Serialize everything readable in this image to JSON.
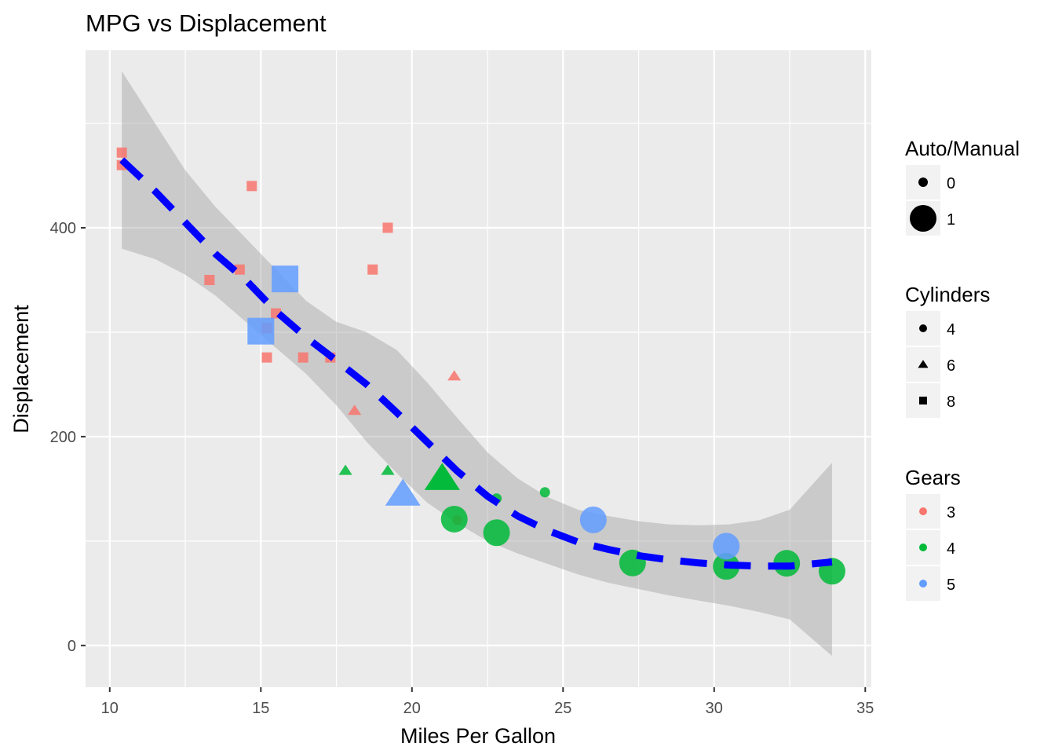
{
  "chart_data": {
    "type": "scatter",
    "title": "MPG vs Displacement",
    "xlabel": "Miles Per Gallon",
    "ylabel": "Displacement",
    "xlim": [
      9.2,
      35.2
    ],
    "ylim": [
      -40,
      570
    ],
    "x_ticks": [
      10,
      15,
      20,
      25,
      30,
      35
    ],
    "y_ticks": [
      0,
      200,
      400
    ],
    "grid": true,
    "legend_position": "right",
    "colors": {
      "3": "#F8766D",
      "4": "#00BA38",
      "5": "#619CFF"
    },
    "legends": [
      {
        "title": "Auto/Manual",
        "entries": [
          "0",
          "1"
        ]
      },
      {
        "title": "Cylinders",
        "entries": [
          "4",
          "6",
          "8"
        ]
      },
      {
        "title": "Gears",
        "entries": [
          "3",
          "4",
          "5"
        ]
      }
    ],
    "points": [
      {
        "mpg": 21.0,
        "disp": 160,
        "cyl": 6,
        "gear": 4,
        "am": 1
      },
      {
        "mpg": 21.0,
        "disp": 160,
        "cyl": 6,
        "gear": 4,
        "am": 1
      },
      {
        "mpg": 22.8,
        "disp": 108,
        "cyl": 4,
        "gear": 4,
        "am": 1
      },
      {
        "mpg": 21.4,
        "disp": 258,
        "cyl": 6,
        "gear": 3,
        "am": 0
      },
      {
        "mpg": 18.7,
        "disp": 360,
        "cyl": 8,
        "gear": 3,
        "am": 0
      },
      {
        "mpg": 18.1,
        "disp": 225,
        "cyl": 6,
        "gear": 3,
        "am": 0
      },
      {
        "mpg": 14.3,
        "disp": 360,
        "cyl": 8,
        "gear": 3,
        "am": 0
      },
      {
        "mpg": 24.4,
        "disp": 146.7,
        "cyl": 4,
        "gear": 4,
        "am": 0
      },
      {
        "mpg": 22.8,
        "disp": 140.8,
        "cyl": 4,
        "gear": 4,
        "am": 0
      },
      {
        "mpg": 19.2,
        "disp": 167.6,
        "cyl": 6,
        "gear": 4,
        "am": 0
      },
      {
        "mpg": 17.8,
        "disp": 167.6,
        "cyl": 6,
        "gear": 4,
        "am": 0
      },
      {
        "mpg": 16.4,
        "disp": 275.8,
        "cyl": 8,
        "gear": 3,
        "am": 0
      },
      {
        "mpg": 17.3,
        "disp": 275.8,
        "cyl": 8,
        "gear": 3,
        "am": 0
      },
      {
        "mpg": 15.2,
        "disp": 275.8,
        "cyl": 8,
        "gear": 3,
        "am": 0
      },
      {
        "mpg": 10.4,
        "disp": 472,
        "cyl": 8,
        "gear": 3,
        "am": 0
      },
      {
        "mpg": 10.4,
        "disp": 460,
        "cyl": 8,
        "gear": 3,
        "am": 0
      },
      {
        "mpg": 14.7,
        "disp": 440,
        "cyl": 8,
        "gear": 3,
        "am": 0
      },
      {
        "mpg": 32.4,
        "disp": 78.7,
        "cyl": 4,
        "gear": 4,
        "am": 1
      },
      {
        "mpg": 30.4,
        "disp": 75.7,
        "cyl": 4,
        "gear": 4,
        "am": 1
      },
      {
        "mpg": 33.9,
        "disp": 71.1,
        "cyl": 4,
        "gear": 4,
        "am": 1
      },
      {
        "mpg": 21.5,
        "disp": 120.1,
        "cyl": 4,
        "gear": 3,
        "am": 0
      },
      {
        "mpg": 15.5,
        "disp": 318,
        "cyl": 8,
        "gear": 3,
        "am": 0
      },
      {
        "mpg": 15.2,
        "disp": 304,
        "cyl": 8,
        "gear": 3,
        "am": 0
      },
      {
        "mpg": 13.3,
        "disp": 350,
        "cyl": 8,
        "gear": 3,
        "am": 0
      },
      {
        "mpg": 19.2,
        "disp": 400,
        "cyl": 8,
        "gear": 3,
        "am": 0
      },
      {
        "mpg": 27.3,
        "disp": 79,
        "cyl": 4,
        "gear": 4,
        "am": 1
      },
      {
        "mpg": 26.0,
        "disp": 120.3,
        "cyl": 4,
        "gear": 5,
        "am": 1
      },
      {
        "mpg": 30.4,
        "disp": 95.1,
        "cyl": 4,
        "gear": 5,
        "am": 1
      },
      {
        "mpg": 15.8,
        "disp": 351,
        "cyl": 8,
        "gear": 5,
        "am": 1
      },
      {
        "mpg": 19.7,
        "disp": 145,
        "cyl": 6,
        "gear": 5,
        "am": 1
      },
      {
        "mpg": 15.0,
        "disp": 301,
        "cyl": 8,
        "gear": 5,
        "am": 1
      },
      {
        "mpg": 21.4,
        "disp": 121,
        "cyl": 4,
        "gear": 4,
        "am": 1
      }
    ],
    "smooth": {
      "method": "loess",
      "line_color": "#0000FF",
      "line_style": "dashed",
      "ribbon_color": "#999999",
      "x": [
        10.4,
        11.5,
        12.5,
        13.5,
        14.5,
        15.5,
        16.5,
        17.5,
        18.5,
        19.5,
        20.5,
        21.5,
        22.5,
        23.5,
        24.5,
        25.5,
        26.5,
        27.5,
        28.5,
        29.5,
        30.5,
        31.5,
        32.5,
        33.9
      ],
      "fit": [
        465,
        435,
        405,
        375,
        350,
        320,
        295,
        273,
        250,
        223,
        195,
        167,
        143,
        124,
        110,
        99,
        92,
        86,
        82,
        79,
        77,
        76,
        76,
        80
      ],
      "lower": [
        380,
        370,
        355,
        335,
        310,
        285,
        260,
        230,
        195,
        165,
        137,
        117,
        100,
        88,
        78,
        68,
        60,
        54,
        48,
        43,
        38,
        32,
        25,
        -10
      ],
      "upper": [
        550,
        500,
        455,
        420,
        390,
        360,
        330,
        310,
        300,
        283,
        252,
        218,
        185,
        160,
        142,
        130,
        124,
        119,
        116,
        115,
        116,
        120,
        130,
        175
      ]
    }
  }
}
